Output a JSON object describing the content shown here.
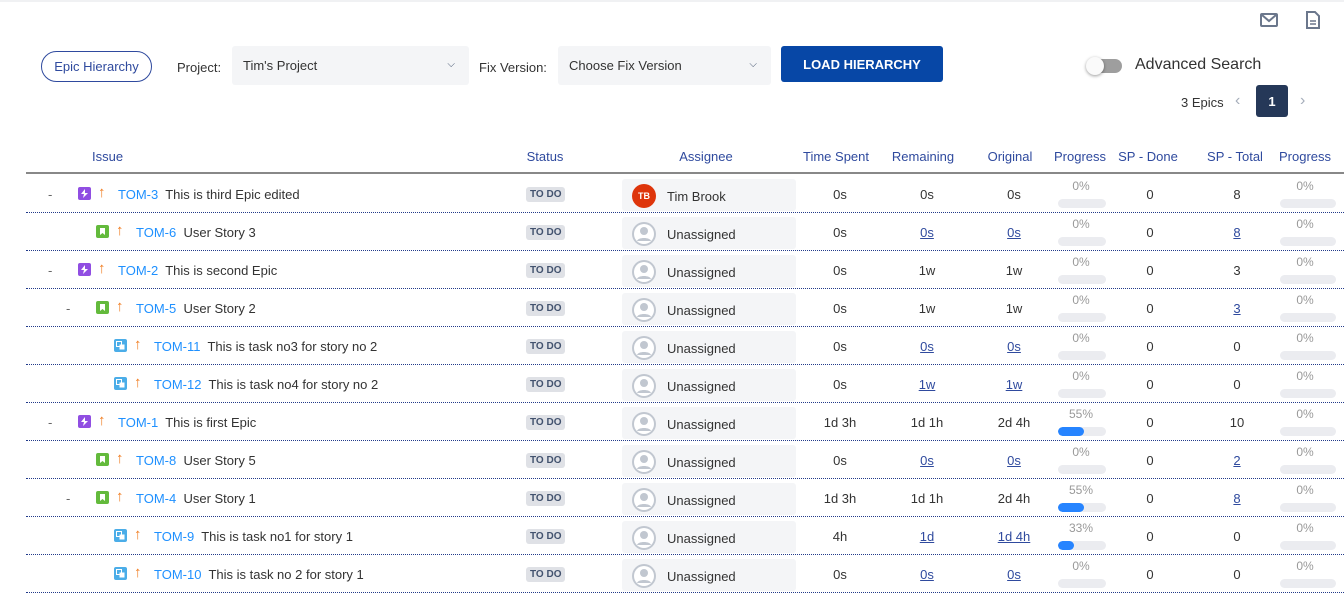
{
  "toolbar": {
    "epic_hierarchy": "Epic Hierarchy",
    "project_label": "Project:",
    "project_value": "Tim's Project",
    "fix_label": "Fix Version:",
    "fix_value": "Choose Fix Version",
    "load": "LOAD HIERARCHY",
    "advanced": "Advanced Search",
    "advanced_on": false,
    "epics_count": "3 Epics",
    "page": "1",
    "icons": [
      "mail-icon",
      "document-icon"
    ]
  },
  "colors": {
    "accent": "#0747a6",
    "link": "#1e90ff",
    "epic": "#904ee2",
    "story": "#63ba3c",
    "subtask": "#4bade8",
    "priority": "#f07b1e"
  },
  "headers": [
    "Issue",
    "Status",
    "Assignee",
    "Time Spent",
    "Remaining",
    "Original",
    "Progress",
    "SP - Done",
    "SP - Total",
    "Progress"
  ],
  "rows": [
    {
      "level": 0,
      "toggle": "-",
      "type": "epic",
      "key": "TOM-3",
      "summary": "This is third Epic edited",
      "status": "TO DO",
      "assignee": "Tim Brook",
      "initials": "TB",
      "spent": "0s",
      "remaining": "0s",
      "original": "0s",
      "progress": "0%",
      "progress_value": 0,
      "sp_done": "0",
      "sp_total": "8",
      "sp_progress": "0%",
      "sp_progress_value": 0,
      "links": false
    },
    {
      "level": 1,
      "toggle": "",
      "type": "story",
      "key": "TOM-6",
      "summary": "User Story 3",
      "status": "TO DO",
      "assignee": "Unassigned",
      "spent": "0s",
      "remaining": "0s",
      "original": "0s",
      "progress": "0%",
      "progress_value": 0,
      "sp_done": "0",
      "sp_total": "8",
      "sp_progress": "0%",
      "sp_progress_value": 0,
      "links": true
    },
    {
      "level": 0,
      "toggle": "-",
      "type": "epic",
      "key": "TOM-2",
      "summary": "This is second Epic",
      "status": "TO DO",
      "assignee": "Unassigned",
      "spent": "0s",
      "remaining": "1w",
      "original": "1w",
      "progress": "0%",
      "progress_value": 0,
      "sp_done": "0",
      "sp_total": "3",
      "sp_progress": "0%",
      "sp_progress_value": 0,
      "links": false
    },
    {
      "level": 1,
      "toggle": "-",
      "type": "story",
      "key": "TOM-5",
      "summary": "User Story 2",
      "status": "TO DO",
      "assignee": "Unassigned",
      "spent": "0s",
      "remaining": "1w",
      "original": "1w",
      "progress": "0%",
      "progress_value": 0,
      "sp_done": "0",
      "sp_total": "3",
      "sp_progress": "0%",
      "sp_progress_value": 0,
      "links": false,
      "sp_link": true
    },
    {
      "level": 2,
      "toggle": "",
      "type": "subtask",
      "key": "TOM-11",
      "summary": "This is task no3 for story no 2",
      "status": "TO DO",
      "assignee": "Unassigned",
      "spent": "0s",
      "remaining": "0s",
      "original": "0s",
      "progress": "0%",
      "progress_value": 0,
      "sp_done": "0",
      "sp_total": "0",
      "sp_progress": "0%",
      "sp_progress_value": 0,
      "links": true,
      "sp_link": false
    },
    {
      "level": 2,
      "toggle": "",
      "type": "subtask",
      "key": "TOM-12",
      "summary": "This is task no4 for story no 2",
      "status": "TO DO",
      "assignee": "Unassigned",
      "spent": "0s",
      "remaining": "1w",
      "original": "1w",
      "progress": "0%",
      "progress_value": 0,
      "sp_done": "0",
      "sp_total": "0",
      "sp_progress": "0%",
      "sp_progress_value": 0,
      "links": true,
      "sp_link": false
    },
    {
      "level": 0,
      "toggle": "-",
      "type": "epic",
      "key": "TOM-1",
      "summary": "This is first Epic",
      "status": "TO DO",
      "assignee": "Unassigned",
      "spent": "1d 3h",
      "remaining": "1d 1h",
      "original": "2d 4h",
      "progress": "55%",
      "progress_value": 55,
      "sp_done": "0",
      "sp_total": "10",
      "sp_progress": "0%",
      "sp_progress_value": 0,
      "links": false
    },
    {
      "level": 1,
      "toggle": "",
      "type": "story",
      "key": "TOM-8",
      "summary": "User Story 5",
      "status": "TO DO",
      "assignee": "Unassigned",
      "spent": "0s",
      "remaining": "0s",
      "original": "0s",
      "progress": "0%",
      "progress_value": 0,
      "sp_done": "0",
      "sp_total": "2",
      "sp_progress": "0%",
      "sp_progress_value": 0,
      "links": true
    },
    {
      "level": 1,
      "toggle": "-",
      "type": "story",
      "key": "TOM-4",
      "summary": "User Story 1",
      "status": "TO DO",
      "assignee": "Unassigned",
      "spent": "1d 3h",
      "remaining": "1d 1h",
      "original": "2d 4h",
      "progress": "55%",
      "progress_value": 55,
      "sp_done": "0",
      "sp_total": "8",
      "sp_progress": "0%",
      "sp_progress_value": 0,
      "links": false,
      "sp_link": true
    },
    {
      "level": 2,
      "toggle": "",
      "type": "subtask",
      "key": "TOM-9",
      "summary": "This is task no1 for story 1",
      "status": "TO DO",
      "assignee": "Unassigned",
      "spent": "4h",
      "remaining": "1d",
      "original": "1d 4h",
      "progress": "33%",
      "progress_value": 33,
      "sp_done": "0",
      "sp_total": "0",
      "sp_progress": "0%",
      "sp_progress_value": 0,
      "links": true,
      "sp_link": false
    },
    {
      "level": 2,
      "toggle": "",
      "type": "subtask",
      "key": "TOM-10",
      "summary": "This is task no 2 for story 1",
      "status": "TO DO",
      "assignee": "Unassigned",
      "spent": "0s",
      "remaining": "0s",
      "original": "0s",
      "progress": "0%",
      "progress_value": 0,
      "sp_done": "0",
      "sp_total": "0",
      "sp_progress": "0%",
      "sp_progress_value": 0,
      "links": true,
      "sp_link": false
    }
  ]
}
